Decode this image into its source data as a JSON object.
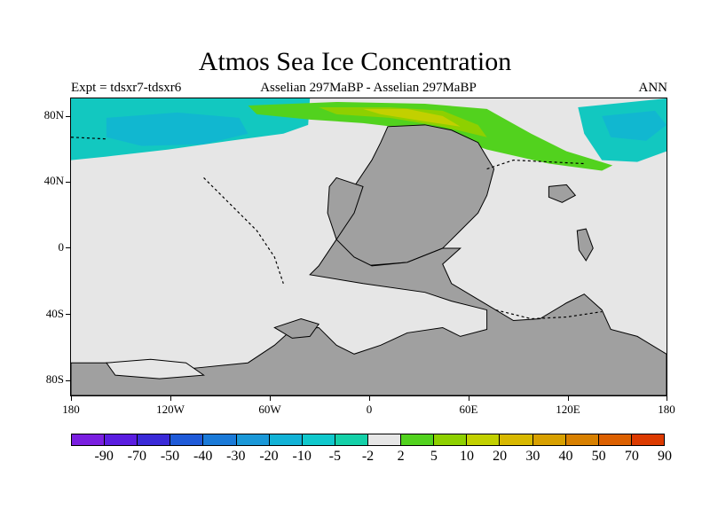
{
  "title": "Atmos Sea Ice Concentration",
  "subtitle_left": "Expt = tdsxr7-tdsxr6",
  "subtitle_center": "Asselian 297MaBP - Asselian 297MaBP",
  "subtitle_right": "ANN",
  "lat_labels": [
    "80N",
    "40N",
    "0",
    "40S",
    "80S"
  ],
  "lon_labels": [
    "180",
    "120W",
    "60W",
    "0",
    "60E",
    "120E",
    "180"
  ],
  "colorbar": {
    "labels": [
      "-90",
      "-70",
      "-50",
      "-40",
      "-30",
      "-20",
      "-10",
      "-5",
      "-2",
      "2",
      "5",
      "10",
      "20",
      "30",
      "40",
      "50",
      "70",
      "90"
    ],
    "colors": [
      "#7a1fe0",
      "#5a1de0",
      "#3a2ad8",
      "#1f5ad8",
      "#1a7ad8",
      "#1a98d8",
      "#12b2d6",
      "#10c8cc",
      "#14d0a8",
      "#e6e6e6",
      "#52d21e",
      "#8ed000",
      "#c2d000",
      "#d8b800",
      "#d8a000",
      "#d88000",
      "#dc6000",
      "#dc3a00"
    ]
  },
  "colors": {
    "land": "#a0a0a0",
    "ocean": "#e6e6e6",
    "cyan_light": "#12c8c0",
    "cyan_mid": "#12b2d6",
    "green": "#52d21e",
    "yellowgreen": "#8ed000",
    "yellow": "#c2d000"
  }
}
